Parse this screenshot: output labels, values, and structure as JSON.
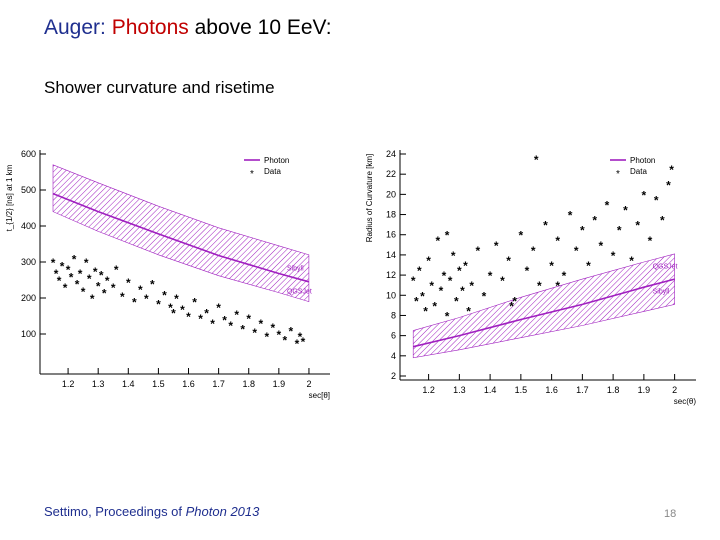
{
  "slide": {
    "title_part1": "Auger: ",
    "title_part2": "Photons",
    "title_part3": " above 10 EeV:",
    "subtitle": "Shower curvature and risetime",
    "footer_prefix": "Settimo, Proceedings of ",
    "footer_italic": "Photon 2013",
    "page_number": "18"
  },
  "colors": {
    "title_blue": "#1f2f8f",
    "title_red": "#c00000",
    "photon_band": "#a020c0",
    "data_points": "#000000"
  },
  "chart_data": [
    {
      "type": "scatter",
      "name": "risetime",
      "ylabel": "t_{1/2} [ns] at 1 km",
      "xlabel": "sec[θ]",
      "xlim": [
        1.12,
        2.05
      ],
      "ylim": [
        0,
        600
      ],
      "xticks": [
        1.2,
        1.3,
        1.4,
        1.5,
        1.6,
        1.7,
        1.8,
        1.9,
        2
      ],
      "xtick_labels": [
        "1.2",
        "1.3",
        "1.4",
        "1.5",
        "1.6",
        "1.7",
        "1.8",
        "1.9",
        "2"
      ],
      "yticks": [
        100,
        200,
        300,
        400,
        500,
        600
      ],
      "ytick_labels": [
        "100",
        "200",
        "300",
        "400",
        "500",
        "600"
      ],
      "legend": [
        "Photon",
        "Data"
      ],
      "legend_position": "top-right",
      "photon_band": {
        "x": [
          1.15,
          1.3,
          1.5,
          1.7,
          1.9,
          2.0
        ],
        "center": [
          490,
          440,
          378,
          318,
          268,
          245
        ],
        "upper": [
          570,
          520,
          455,
          395,
          345,
          320
        ],
        "lower": [
          440,
          385,
          320,
          262,
          215,
          190
        ]
      },
      "annotations": [
        "Sibyll",
        "QGSJet"
      ],
      "points": [
        [
          1.15,
          300
        ],
        [
          1.16,
          270
        ],
        [
          1.17,
          250
        ],
        [
          1.18,
          290
        ],
        [
          1.19,
          230
        ],
        [
          1.2,
          280
        ],
        [
          1.21,
          260
        ],
        [
          1.22,
          310
        ],
        [
          1.23,
          240
        ],
        [
          1.24,
          270
        ],
        [
          1.25,
          220
        ],
        [
          1.26,
          300
        ],
        [
          1.27,
          255
        ],
        [
          1.28,
          200
        ],
        [
          1.29,
          275
        ],
        [
          1.3,
          235
        ],
        [
          1.31,
          265
        ],
        [
          1.32,
          215
        ],
        [
          1.33,
          250
        ],
        [
          1.35,
          230
        ],
        [
          1.36,
          280
        ],
        [
          1.38,
          205
        ],
        [
          1.4,
          245
        ],
        [
          1.42,
          190
        ],
        [
          1.44,
          225
        ],
        [
          1.46,
          200
        ],
        [
          1.48,
          240
        ],
        [
          1.5,
          185
        ],
        [
          1.52,
          210
        ],
        [
          1.54,
          175
        ],
        [
          1.55,
          160
        ],
        [
          1.56,
          200
        ],
        [
          1.58,
          170
        ],
        [
          1.6,
          150
        ],
        [
          1.62,
          190
        ],
        [
          1.64,
          145
        ],
        [
          1.66,
          160
        ],
        [
          1.68,
          130
        ],
        [
          1.7,
          175
        ],
        [
          1.72,
          140
        ],
        [
          1.74,
          125
        ],
        [
          1.76,
          155
        ],
        [
          1.78,
          115
        ],
        [
          1.8,
          145
        ],
        [
          1.82,
          105
        ],
        [
          1.84,
          130
        ],
        [
          1.86,
          95
        ],
        [
          1.88,
          120
        ],
        [
          1.9,
          100
        ],
        [
          1.92,
          85
        ],
        [
          1.94,
          110
        ],
        [
          1.96,
          75
        ],
        [
          1.97,
          95
        ],
        [
          1.98,
          80
        ]
      ]
    },
    {
      "type": "scatter",
      "name": "curvature",
      "ylabel": "Radius of Curvature [km]",
      "xlabel": "sec(θ)",
      "xlim": [
        1.12,
        2.05
      ],
      "ylim": [
        2,
        24
      ],
      "xticks": [
        1.2,
        1.3,
        1.4,
        1.5,
        1.6,
        1.7,
        1.8,
        1.9,
        2
      ],
      "xtick_labels": [
        "1.2",
        "1.3",
        "1.4",
        "1.5",
        "1.6",
        "1.7",
        "1.8",
        "1.9",
        "2"
      ],
      "yticks": [
        2,
        4,
        6,
        8,
        10,
        12,
        14,
        16,
        18,
        20,
        22,
        24
      ],
      "ytick_labels": [
        "2",
        "4",
        "6",
        "8",
        "10",
        "12",
        "14",
        "16",
        "18",
        "20",
        "22",
        "24"
      ],
      "legend": [
        "Photon",
        "Data"
      ],
      "legend_position": "top-right",
      "photon_band": {
        "x": [
          1.15,
          1.3,
          1.5,
          1.7,
          1.9,
          2.0
        ],
        "center": [
          4.9,
          6.0,
          7.6,
          9.1,
          10.8,
          11.6
        ],
        "upper": [
          6.5,
          7.8,
          9.8,
          11.6,
          13.3,
          14.1
        ],
        "lower": [
          3.8,
          4.6,
          5.8,
          7.0,
          8.4,
          9.1
        ]
      },
      "annotations": [
        "QGSJet",
        "Sibyll"
      ],
      "points": [
        [
          1.15,
          11.5
        ],
        [
          1.16,
          9.5
        ],
        [
          1.17,
          12.5
        ],
        [
          1.18,
          10.0
        ],
        [
          1.19,
          8.5
        ],
        [
          1.2,
          13.5
        ],
        [
          1.21,
          11.0
        ],
        [
          1.22,
          9.0
        ],
        [
          1.23,
          15.5
        ],
        [
          1.24,
          10.5
        ],
        [
          1.25,
          12.0
        ],
        [
          1.26,
          8.0
        ],
        [
          1.27,
          11.5
        ],
        [
          1.28,
          14.0
        ],
        [
          1.29,
          9.5
        ],
        [
          1.3,
          12.5
        ],
        [
          1.31,
          10.5
        ],
        [
          1.32,
          13.0
        ],
        [
          1.33,
          8.5
        ],
        [
          1.34,
          11.0
        ],
        [
          1.36,
          14.5
        ],
        [
          1.38,
          10.0
        ],
        [
          1.4,
          12.0
        ],
        [
          1.42,
          15.0
        ],
        [
          1.44,
          11.5
        ],
        [
          1.46,
          13.5
        ],
        [
          1.48,
          9.5
        ],
        [
          1.5,
          16.0
        ],
        [
          1.52,
          12.5
        ],
        [
          1.54,
          14.5
        ],
        [
          1.56,
          11.0
        ],
        [
          1.58,
          17.0
        ],
        [
          1.6,
          13.0
        ],
        [
          1.62,
          15.5
        ],
        [
          1.64,
          12.0
        ],
        [
          1.66,
          18.0
        ],
        [
          1.68,
          14.5
        ],
        [
          1.7,
          16.5
        ],
        [
          1.72,
          13.0
        ],
        [
          1.74,
          17.5
        ],
        [
          1.76,
          15.0
        ],
        [
          1.78,
          19.0
        ],
        [
          1.8,
          14.0
        ],
        [
          1.82,
          16.5
        ],
        [
          1.84,
          18.5
        ],
        [
          1.86,
          13.5
        ],
        [
          1.88,
          17.0
        ],
        [
          1.9,
          20.0
        ],
        [
          1.92,
          15.5
        ],
        [
          1.94,
          19.5
        ],
        [
          1.96,
          17.5
        ],
        [
          1.98,
          21.0
        ],
        [
          1.99,
          22.5
        ],
        [
          1.55,
          23.5
        ],
        [
          1.26,
          16.0
        ],
        [
          1.47,
          9.0
        ],
        [
          1.62,
          11.0
        ]
      ]
    }
  ]
}
